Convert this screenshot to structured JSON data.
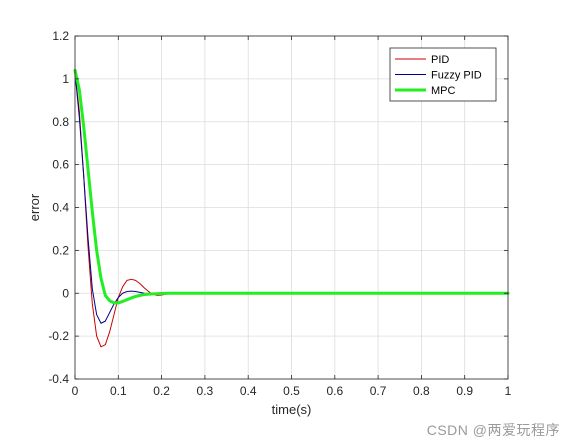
{
  "chart_data": {
    "type": "line",
    "xlabel": "time(s)",
    "ylabel": "error",
    "xlim": [
      0,
      1
    ],
    "ylim": [
      -0.4,
      1.2
    ],
    "xticks": [
      "0",
      "0.1",
      "0.2",
      "0.3",
      "0.4",
      "0.5",
      "0.6",
      "0.7",
      "0.8",
      "0.9",
      "1"
    ],
    "yticks": [
      "-0.4",
      "-0.2",
      "0",
      "0.2",
      "0.4",
      "0.6",
      "0.8",
      "1",
      "1.2"
    ],
    "grid": true,
    "legend_position": "top-right",
    "series": [
      {
        "name": "PID",
        "color": "#cc0000",
        "points": [
          [
            0,
            1.03
          ],
          [
            0.01,
            0.85
          ],
          [
            0.02,
            0.55
          ],
          [
            0.03,
            0.22
          ],
          [
            0.04,
            -0.05
          ],
          [
            0.05,
            -0.2
          ],
          [
            0.06,
            -0.25
          ],
          [
            0.07,
            -0.24
          ],
          [
            0.08,
            -0.18
          ],
          [
            0.09,
            -0.1
          ],
          [
            0.1,
            -0.02
          ],
          [
            0.11,
            0.03
          ],
          [
            0.12,
            0.06
          ],
          [
            0.13,
            0.065
          ],
          [
            0.14,
            0.06
          ],
          [
            0.15,
            0.045
          ],
          [
            0.16,
            0.025
          ],
          [
            0.17,
            0.008
          ],
          [
            0.18,
            -0.005
          ],
          [
            0.19,
            -0.01
          ],
          [
            0.2,
            -0.008
          ],
          [
            0.21,
            -0.004
          ],
          [
            0.22,
            0.0
          ],
          [
            0.25,
            0.001
          ],
          [
            0.3,
            0
          ],
          [
            1,
            0
          ]
        ]
      },
      {
        "name": "Fuzzy PID",
        "color": "#00008b",
        "points": [
          [
            0,
            1.03
          ],
          [
            0.01,
            0.82
          ],
          [
            0.02,
            0.55
          ],
          [
            0.03,
            0.26
          ],
          [
            0.04,
            0.02
          ],
          [
            0.05,
            -0.1
          ],
          [
            0.06,
            -0.14
          ],
          [
            0.07,
            -0.13
          ],
          [
            0.08,
            -0.09
          ],
          [
            0.09,
            -0.05
          ],
          [
            0.1,
            -0.02
          ],
          [
            0.11,
            0.0
          ],
          [
            0.12,
            0.008
          ],
          [
            0.13,
            0.01
          ],
          [
            0.14,
            0.008
          ],
          [
            0.15,
            0.004
          ],
          [
            0.16,
            0.0
          ],
          [
            0.18,
            -0.002
          ],
          [
            0.2,
            0
          ],
          [
            1,
            0
          ]
        ]
      },
      {
        "name": "MPC",
        "color": "#22ee22",
        "points": [
          [
            0,
            1.04
          ],
          [
            0.01,
            0.95
          ],
          [
            0.02,
            0.78
          ],
          [
            0.03,
            0.58
          ],
          [
            0.04,
            0.38
          ],
          [
            0.05,
            0.2
          ],
          [
            0.06,
            0.07
          ],
          [
            0.07,
            -0.01
          ],
          [
            0.08,
            -0.035
          ],
          [
            0.09,
            -0.045
          ],
          [
            0.1,
            -0.045
          ],
          [
            0.11,
            -0.038
          ],
          [
            0.12,
            -0.03
          ],
          [
            0.13,
            -0.022
          ],
          [
            0.14,
            -0.015
          ],
          [
            0.15,
            -0.01
          ],
          [
            0.16,
            -0.006
          ],
          [
            0.18,
            -0.003
          ],
          [
            0.2,
            -0.001
          ],
          [
            0.22,
            0
          ],
          [
            1,
            0
          ]
        ]
      }
    ]
  },
  "watermark": "CSDN @两爱玩程序"
}
